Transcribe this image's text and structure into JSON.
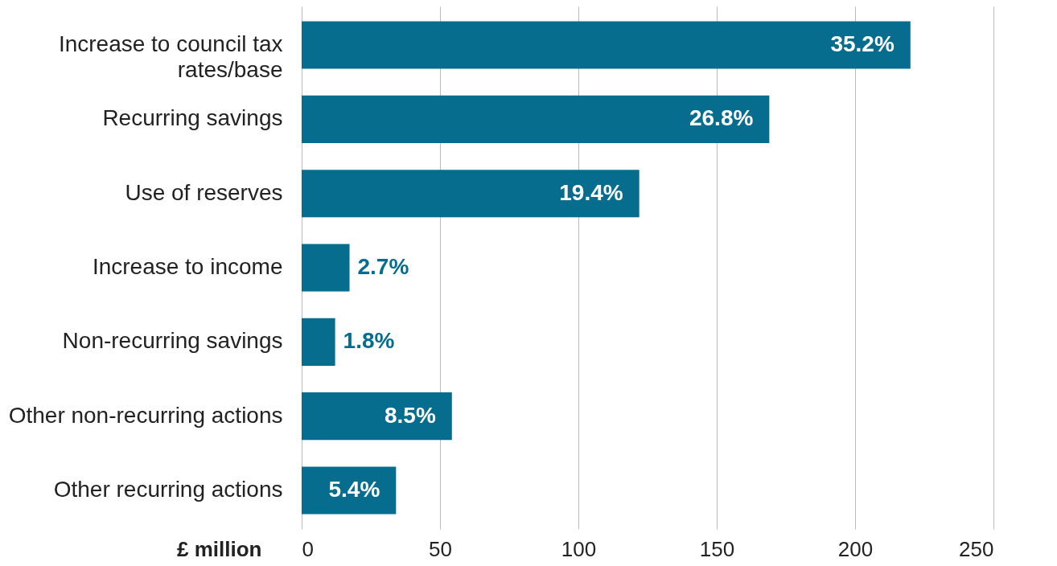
{
  "chart_data": {
    "type": "bar",
    "orientation": "horizontal",
    "xlabel": "£ million",
    "categories": [
      "Increase to council tax rates/base",
      "Recurring savings",
      "Use of reserves",
      "Increase to income",
      "Non-recurring savings",
      "Other non-recurring actions",
      "Other recurring actions"
    ],
    "values": [
      220,
      169,
      122,
      17.3,
      12.1,
      54.3,
      34.1
    ],
    "annotations": [
      {
        "text": "35.2%",
        "x": 220,
        "y": "Increase to council tax rates/base"
      },
      {
        "text": "26.8%",
        "x": 169,
        "y": "Recurring savings"
      },
      {
        "text": "19.4%",
        "x": 122,
        "y": "Use of reserves"
      },
      {
        "text": "2.7%",
        "x": 17.3,
        "y": "Increase to income"
      },
      {
        "text": "1.8%",
        "x": 12.1,
        "y": "Non-recurring savings"
      },
      {
        "text": "8.5%",
        "x": 54.3,
        "y": "Other non-recurring actions"
      },
      {
        "text": "5.4%",
        "x": 34.1,
        "y": "Other recurring actions"
      }
    ],
    "color": "#066d8e",
    "xlim": [
      0,
      250
    ],
    "xticks": [
      0,
      50,
      100,
      150,
      200,
      250
    ],
    "grid": "x",
    "legend": false
  }
}
